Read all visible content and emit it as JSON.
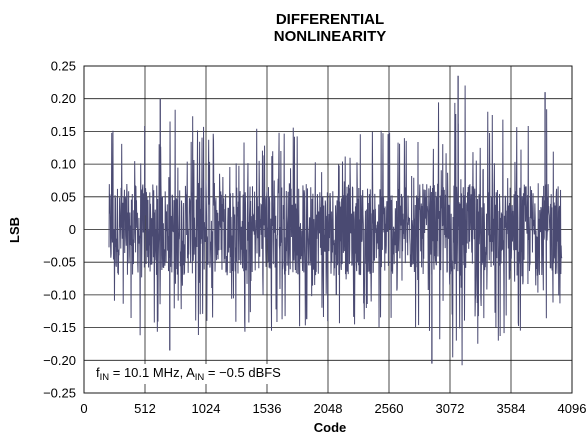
{
  "chart_data": {
    "type": "line",
    "title_lines": [
      "DIFFERENTIAL",
      "NONLINEARITY"
    ],
    "xlabel": "Code",
    "ylabel": "LSB",
    "xlim": [
      0,
      4096
    ],
    "ylim": [
      -0.25,
      0.25
    ],
    "x_ticks": [
      0,
      512,
      1024,
      1536,
      2048,
      2560,
      3072,
      3584,
      4096
    ],
    "x_tick_labels": [
      "0",
      "512",
      "1024",
      "1536",
      "2048",
      "2560",
      "3072",
      "3584",
      "4096"
    ],
    "y_ticks": [
      0.25,
      0.2,
      0.15,
      0.1,
      0.05,
      0,
      -0.05,
      -0.1,
      -0.15,
      -0.2,
      -0.25
    ],
    "y_tick_labels": [
      "0.25",
      "0.20",
      "0.15",
      "0.10",
      "0.05",
      "0",
      "−0.05",
      "−0.10",
      "−0.15",
      "−0.20",
      "−0.25"
    ],
    "grid": true,
    "series": [
      {
        "color": "#4a4a72",
        "x_range": [
          210,
          4010
        ],
        "typical_band": [
          -0.07,
          0.07
        ],
        "envelope_max": [
          0.16,
          0.2,
          0.16,
          0.17,
          0.16,
          0.16,
          0.17,
          0.23,
          0.16,
          0.21
        ],
        "envelope_min": [
          -0.15,
          -0.18,
          -0.16,
          -0.16,
          -0.16,
          -0.15,
          -0.16,
          -0.21,
          -0.16,
          -0.16
        ],
        "notable_peaks": [
          {
            "x": 640,
            "y": 0.2
          },
          {
            "x": 3140,
            "y": 0.235
          },
          {
            "x": 3870,
            "y": 0.21
          },
          {
            "x": 2920,
            "y": -0.205
          },
          {
            "x": 720,
            "y": -0.185
          }
        ]
      }
    ],
    "annotation": {
      "parts": [
        {
          "t": "f",
          "sub": false
        },
        {
          "t": "IN",
          "sub": true
        },
        {
          "t": " = 10.1 MHz, A",
          "sub": false
        },
        {
          "t": "IN",
          "sub": true
        },
        {
          "t": " = −0.5 dBFS",
          "sub": false
        }
      ]
    }
  }
}
